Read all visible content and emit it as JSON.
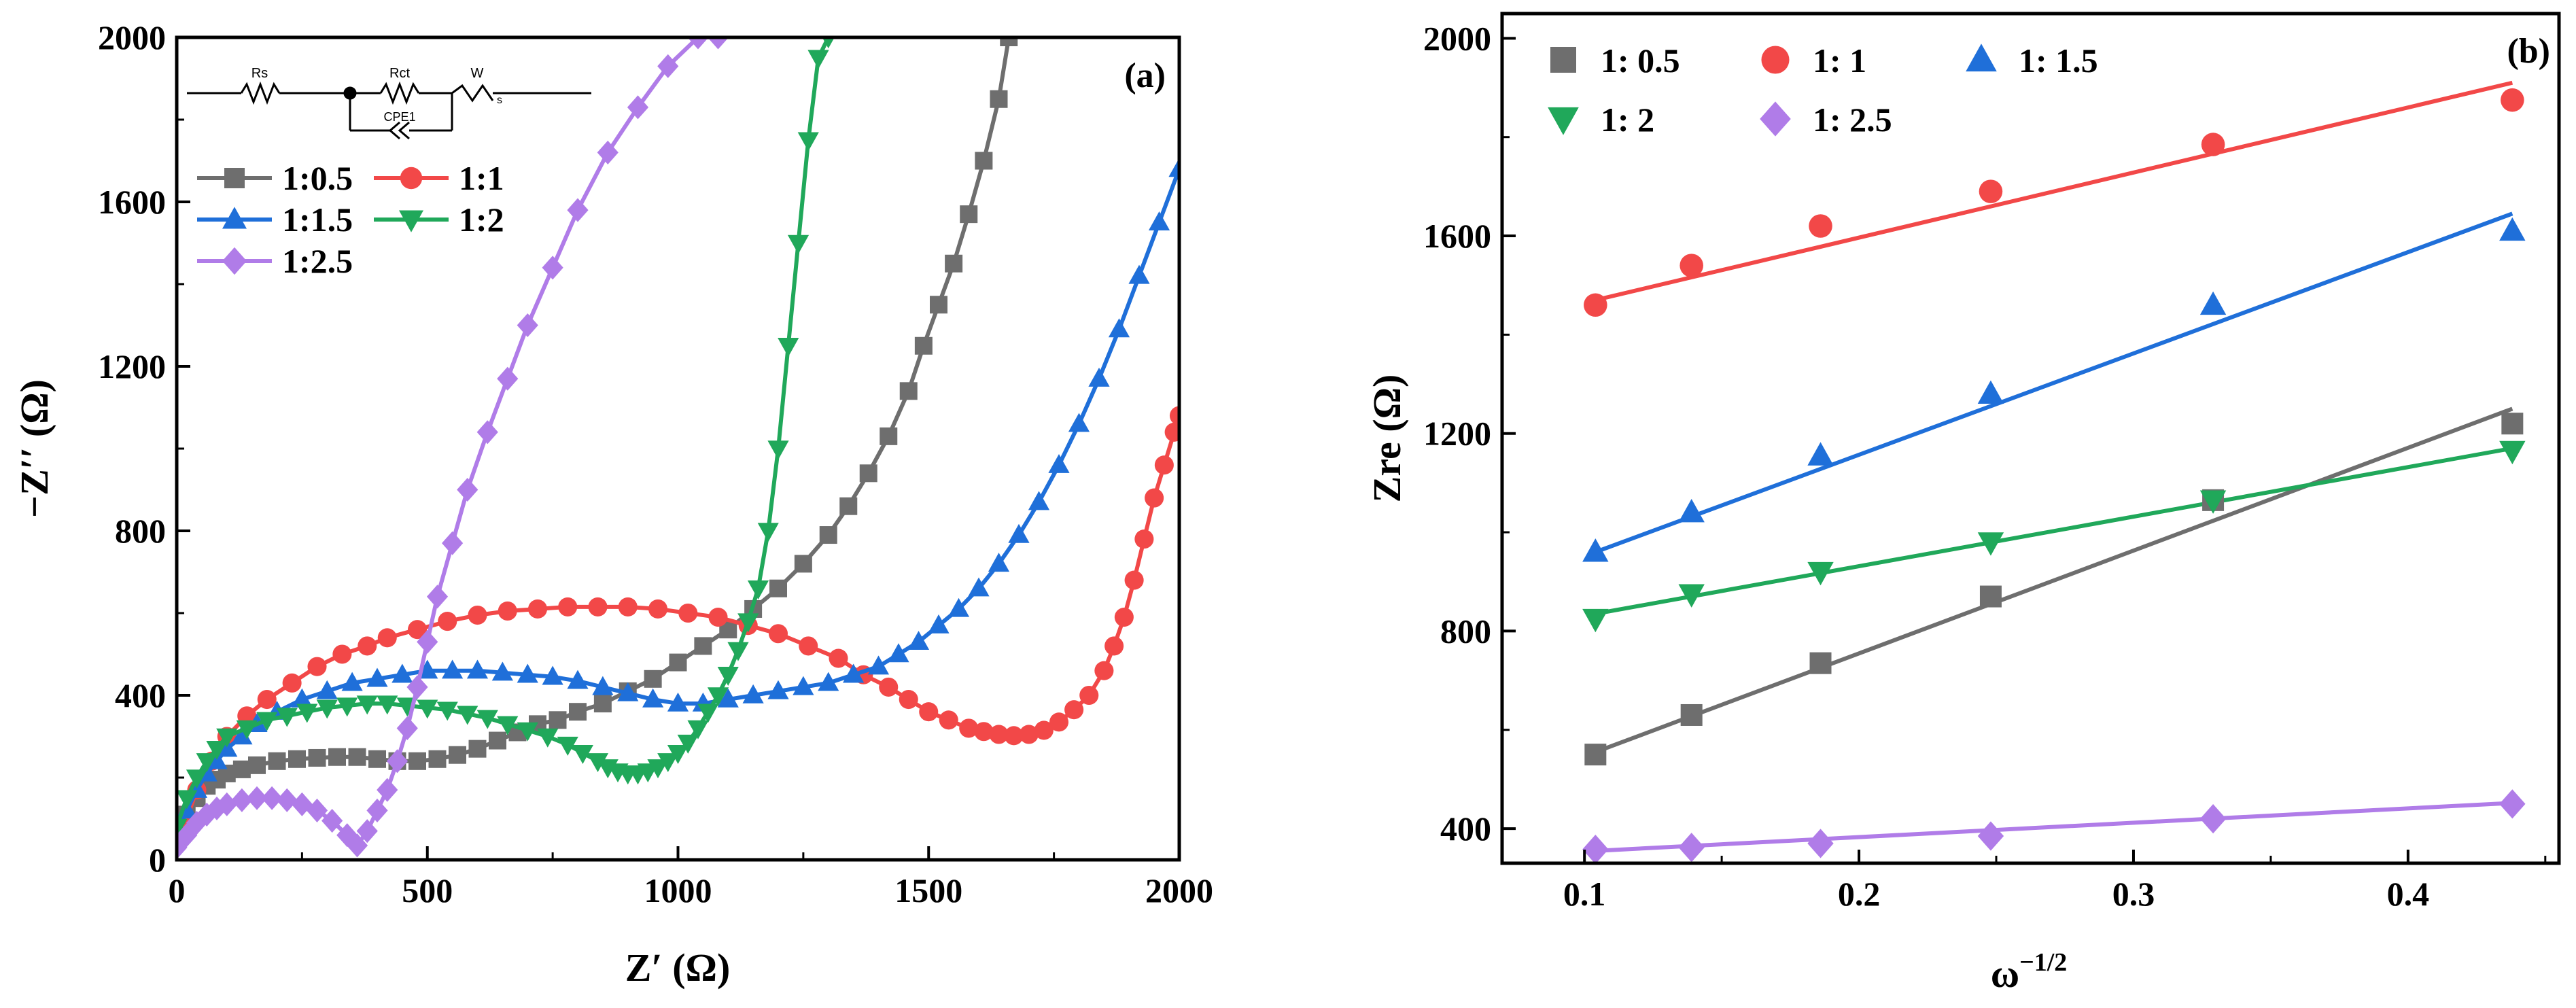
{
  "chart_data": [
    {
      "panel": "a",
      "type": "line",
      "panel_label": "(a)",
      "xlabel": "Z′ (Ω)",
      "ylabel": "−Z′′ (Ω)",
      "xlim": [
        0,
        2000
      ],
      "ylim": [
        0,
        2000
      ],
      "xticks": [
        0,
        500,
        1000,
        1500,
        2000
      ],
      "yticks": [
        0,
        400,
        800,
        1200,
        1600,
        2000
      ],
      "xtick_labels": [
        "0",
        "500",
        "1000",
        "1500",
        "2000"
      ],
      "ytick_labels": [
        "0",
        "400",
        "800",
        "1200",
        "1600",
        "2000"
      ],
      "circuit": {
        "labels": [
          "Rs",
          "Rct",
          "W",
          "CPE1"
        ],
        "subscript": "s"
      },
      "legend": [
        "1:0.5",
        "1:1",
        "1:1.5",
        "1:2",
        "1:2.5"
      ],
      "series": [
        {
          "name": "1:0.5",
          "color": "#6e6e6e",
          "marker": "square",
          "x": [
            0,
            20,
            40,
            60,
            80,
            100,
            130,
            160,
            200,
            240,
            280,
            320,
            360,
            400,
            440,
            480,
            520,
            560,
            600,
            640,
            680,
            720,
            760,
            800,
            850,
            900,
            950,
            1000,
            1050,
            1100,
            1150,
            1200,
            1250,
            1300,
            1340,
            1380,
            1420,
            1460,
            1490,
            1520,
            1550,
            1580,
            1610,
            1640,
            1660
          ],
          "y": [
            50,
            110,
            150,
            180,
            195,
            210,
            220,
            230,
            240,
            245,
            248,
            250,
            250,
            245,
            240,
            240,
            245,
            255,
            270,
            290,
            310,
            330,
            340,
            360,
            380,
            410,
            440,
            480,
            520,
            560,
            610,
            660,
            720,
            790,
            860,
            940,
            1030,
            1140,
            1250,
            1350,
            1450,
            1570,
            1700,
            1850,
            2000
          ]
        },
        {
          "name": "1:1",
          "color": "#f24848",
          "marker": "circle",
          "x": [
            20,
            40,
            70,
            100,
            140,
            180,
            230,
            280,
            330,
            380,
            420,
            480,
            540,
            600,
            660,
            720,
            780,
            840,
            900,
            960,
            1020,
            1080,
            1140,
            1200,
            1260,
            1320,
            1370,
            1420,
            1460,
            1500,
            1540,
            1580,
            1610,
            1640,
            1670,
            1700,
            1730,
            1760,
            1790,
            1820,
            1850,
            1870,
            1890,
            1910,
            1930,
            1950,
            1970,
            1990,
            2000
          ],
          "y": [
            100,
            170,
            240,
            300,
            350,
            390,
            430,
            470,
            500,
            520,
            540,
            560,
            580,
            595,
            605,
            610,
            615,
            615,
            615,
            610,
            600,
            590,
            570,
            550,
            520,
            490,
            450,
            420,
            390,
            360,
            340,
            320,
            312,
            305,
            302,
            305,
            315,
            335,
            365,
            400,
            460,
            520,
            590,
            680,
            780,
            880,
            960,
            1040,
            1080
          ]
        },
        {
          "name": "1:1.5",
          "color": "#1f6fd9",
          "marker": "triangle",
          "x": [
            0,
            20,
            40,
            60,
            80,
            100,
            130,
            160,
            200,
            250,
            300,
            350,
            400,
            450,
            500,
            550,
            600,
            650,
            700,
            750,
            800,
            850,
            900,
            950,
            1000,
            1050,
            1100,
            1150,
            1200,
            1250,
            1300,
            1350,
            1400,
            1440,
            1480,
            1520,
            1560,
            1600,
            1640,
            1680,
            1720,
            1760,
            1800,
            1840,
            1880,
            1920,
            1960,
            2000
          ],
          "y": [
            60,
            120,
            170,
            210,
            240,
            270,
            300,
            330,
            360,
            390,
            410,
            430,
            440,
            450,
            460,
            460,
            460,
            455,
            450,
            445,
            435,
            420,
            405,
            390,
            380,
            380,
            390,
            400,
            410,
            420,
            430,
            450,
            470,
            500,
            530,
            570,
            610,
            660,
            720,
            790,
            870,
            960,
            1060,
            1170,
            1290,
            1420,
            1550,
            1680
          ]
        },
        {
          "name": "1:2",
          "color": "#20a85a",
          "marker": "triangle-down",
          "x": [
            0,
            20,
            40,
            60,
            80,
            100,
            140,
            180,
            220,
            260,
            300,
            340,
            380,
            420,
            460,
            500,
            540,
            580,
            620,
            660,
            700,
            740,
            780,
            810,
            840,
            860,
            880,
            900,
            920,
            940,
            960,
            980,
            1000,
            1020,
            1040,
            1060,
            1080,
            1100,
            1120,
            1140,
            1160,
            1180,
            1200,
            1220,
            1240,
            1260,
            1280,
            1300
          ],
          "y": [
            80,
            150,
            200,
            240,
            270,
            300,
            320,
            340,
            350,
            360,
            370,
            375,
            380,
            380,
            375,
            370,
            365,
            355,
            345,
            330,
            315,
            300,
            280,
            260,
            240,
            225,
            215,
            210,
            210,
            215,
            225,
            240,
            260,
            285,
            320,
            360,
            400,
            450,
            510,
            580,
            660,
            800,
            1000,
            1250,
            1500,
            1750,
            1950,
            2000
          ]
        },
        {
          "name": "1:2.5",
          "color": "#b07ce8",
          "marker": "diamond",
          "x": [
            0,
            20,
            40,
            60,
            80,
            100,
            130,
            160,
            190,
            220,
            250,
            280,
            310,
            340,
            360,
            380,
            400,
            420,
            440,
            460,
            480,
            500,
            520,
            550,
            580,
            620,
            660,
            700,
            750,
            800,
            860,
            920,
            980,
            1040,
            1080
          ],
          "y": [
            30,
            60,
            90,
            110,
            125,
            135,
            145,
            150,
            150,
            145,
            135,
            120,
            95,
            60,
            35,
            70,
            120,
            170,
            240,
            320,
            420,
            530,
            640,
            770,
            900,
            1040,
            1170,
            1300,
            1440,
            1580,
            1720,
            1830,
            1930,
            2000,
            2000
          ]
        }
      ]
    },
    {
      "panel": "b",
      "type": "scatter",
      "panel_label": "(b)",
      "xlabel": "ω",
      "xlabel_sup": "−1/2",
      "ylabel": "Zre (Ω)",
      "xlim": [
        0.07,
        0.455
      ],
      "ylim": [
        330,
        2050
      ],
      "xticks": [
        0.1,
        0.2,
        0.3,
        0.4
      ],
      "yticks": [
        400,
        800,
        1200,
        1600,
        2000
      ],
      "xtick_labels": [
        "0.1",
        "0.2",
        "0.3",
        "0.4"
      ],
      "ytick_labels": [
        "400",
        "800",
        "1200",
        "1600",
        "2000"
      ],
      "x": [
        0.104,
        0.139,
        0.186,
        0.248,
        0.329,
        0.438
      ],
      "legend": [
        "1: 0.5",
        "1: 1",
        "1: 1.5",
        "1: 2",
        "1: 2.5"
      ],
      "series": [
        {
          "name": "1: 0.5",
          "color": "#6e6e6e",
          "marker": "square",
          "values": [
            550,
            630,
            735,
            870,
            1065,
            1220
          ],
          "fit": [
            555,
            1250
          ]
        },
        {
          "name": "1: 1",
          "color": "#f24848",
          "marker": "circle",
          "values": [
            1460,
            1540,
            1620,
            1690,
            1785,
            1875
          ],
          "fit": [
            1470,
            1910
          ]
        },
        {
          "name": "1: 1.5",
          "color": "#1f6fd9",
          "marker": "triangle",
          "values": [
            960,
            1040,
            1155,
            1280,
            1460,
            1610
          ],
          "fit": [
            960,
            1645
          ]
        },
        {
          "name": "1: 2",
          "color": "#20a85a",
          "marker": "triangle-down",
          "values": [
            825,
            875,
            920,
            980,
            1065,
            1165
          ],
          "fit": [
            835,
            1170
          ]
        },
        {
          "name": "1: 2.5",
          "color": "#b07ce8",
          "marker": "diamond",
          "values": [
            358,
            362,
            370,
            385,
            420,
            450
          ],
          "fit": [
            355,
            452
          ]
        }
      ]
    }
  ]
}
